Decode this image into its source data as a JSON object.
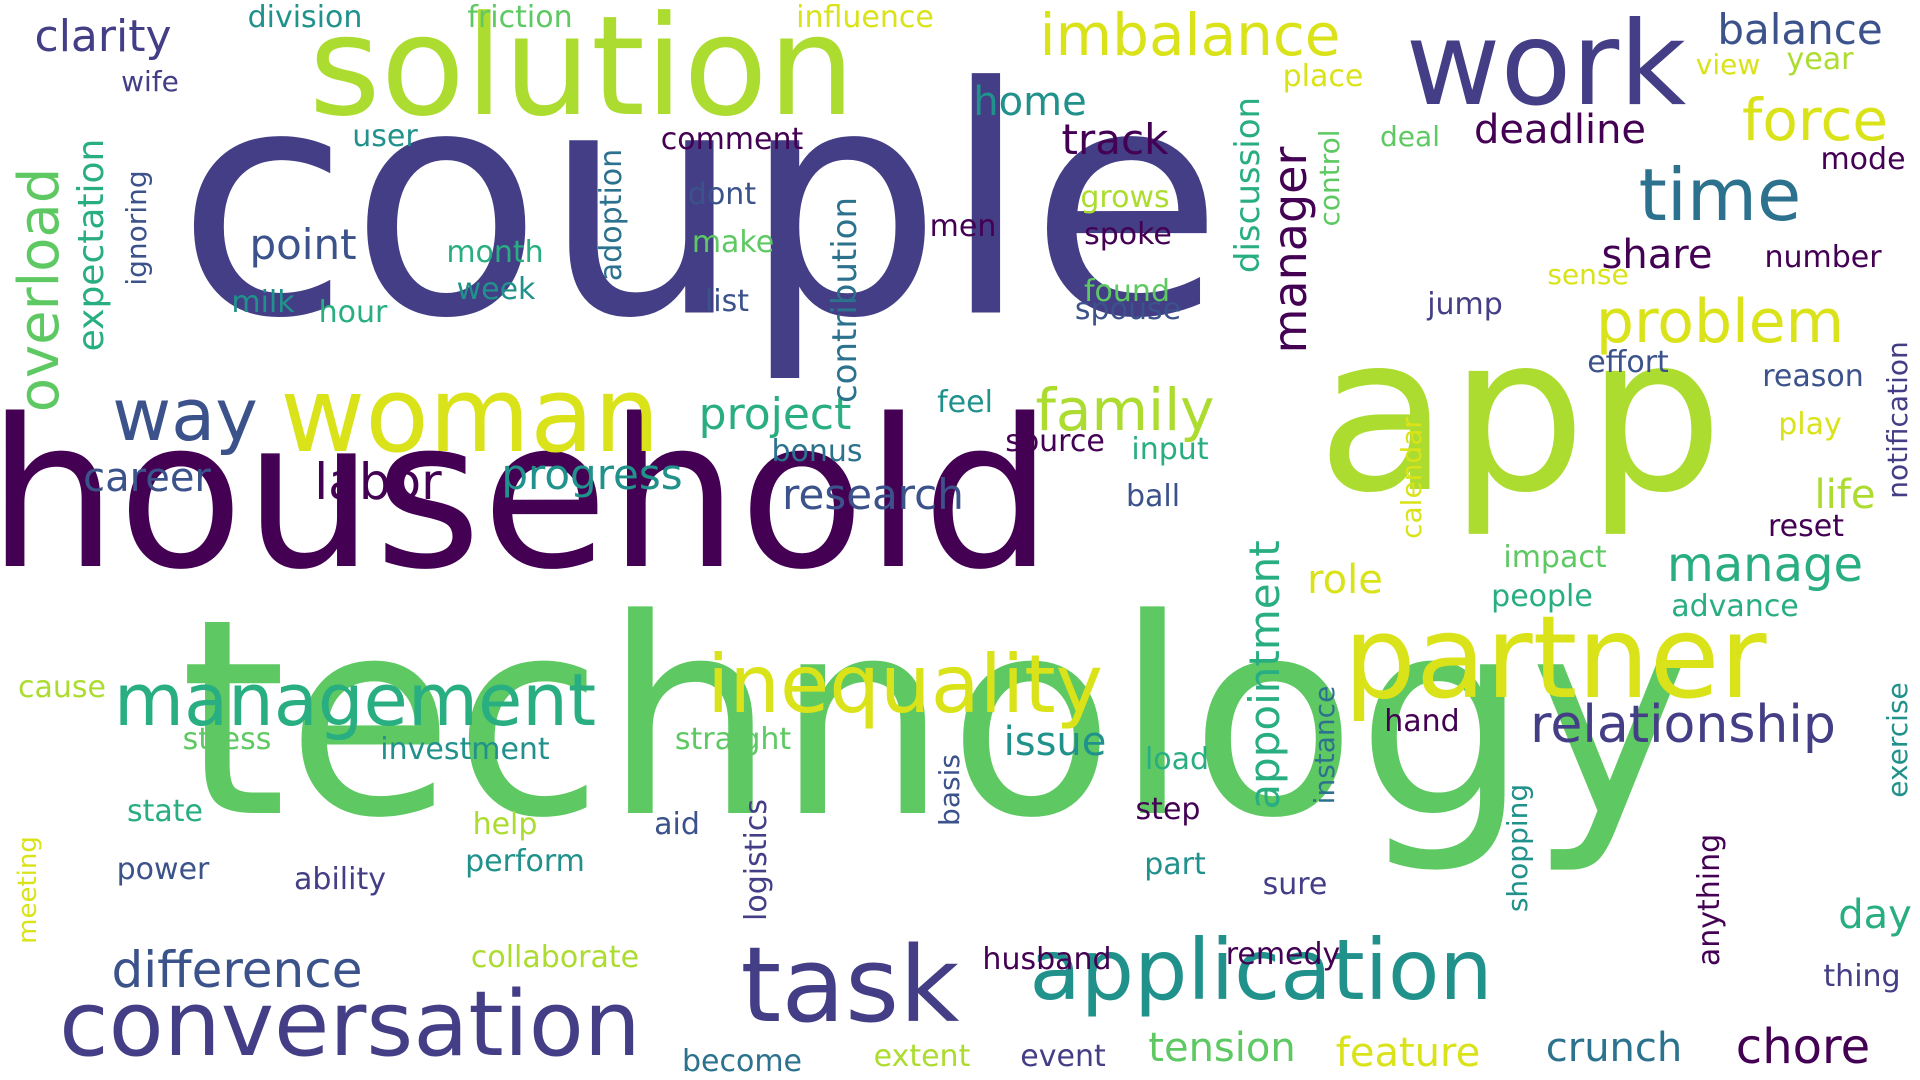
{
  "palette": {
    "purple": "#440154",
    "indigo": "#433e85",
    "slate": "#3b528b",
    "blue": "#2c728e",
    "teal": "#21918c",
    "sea": "#28ae80",
    "green": "#5ec962",
    "lime": "#addc30",
    "yellow": "#dae319",
    "gold": "#fde725"
  },
  "words": [
    "couple",
    "technology",
    "household",
    "app",
    "solution",
    "work",
    "partner",
    "woman",
    "task",
    "conversation",
    "application",
    "inequality",
    "management",
    "imbalance",
    "time",
    "way",
    "problem",
    "family",
    "overload",
    "force",
    "relationship",
    "difference",
    "manager",
    "labor",
    "chore",
    "clarity",
    "balance",
    "deadline",
    "track",
    "home",
    "point",
    "project",
    "progress",
    "research",
    "manage",
    "share",
    "appointment",
    "career",
    "tension",
    "feature",
    "crunch",
    "expectation",
    "contribution",
    "role",
    "issue",
    "life",
    "day",
    "discussion",
    "adoption",
    "anything",
    "notification",
    "exercise",
    "division",
    "friction",
    "influence",
    "year",
    "view",
    "wife",
    "user",
    "comment",
    "deal",
    "place",
    "mode",
    "ignoring",
    "dont",
    "grows",
    "spoke",
    "month",
    "make",
    "men",
    "week",
    "milk",
    "hour",
    "list",
    "found",
    "spouse",
    "jump",
    "sense",
    "number",
    "effort",
    "reason",
    "feel",
    "control",
    "source",
    "bonus",
    "input",
    "play",
    "ball",
    "calendar",
    "reset",
    "impact",
    "people",
    "advance",
    "instance",
    "hand",
    "cause",
    "stress",
    "investment",
    "straight",
    "load",
    "basis",
    "state",
    "help",
    "aid",
    "step",
    "logistics",
    "shopping",
    "perform",
    "power",
    "ability",
    "part",
    "sure",
    "meeting",
    "collaborate",
    "husband",
    "remedy",
    "thing",
    "become",
    "extent",
    "event"
  ]
}
